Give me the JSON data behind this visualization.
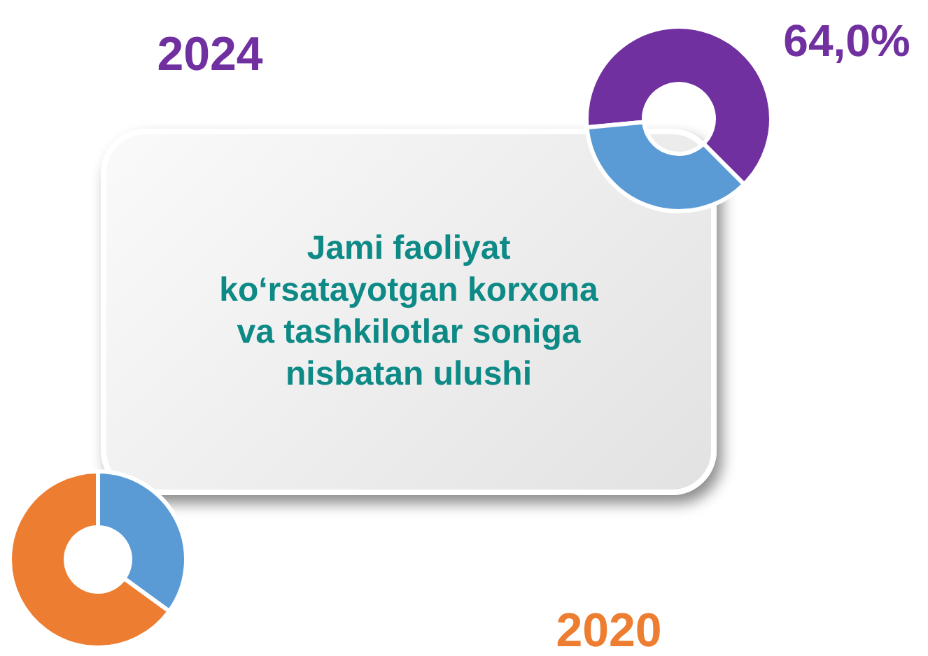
{
  "chart_data": [
    {
      "type": "donut",
      "title": "2024",
      "categories": [
        null,
        null
      ],
      "values": [
        64,
        36
      ],
      "colors": [
        "#7030a0",
        "#5b9bd5"
      ],
      "value_labels": [
        "64,0%",
        null
      ]
    },
    {
      "type": "other",
      "title": "Jami faoliyat ko‘rsatayotgan korxona va tashkilotlar soniga nisbatan ulushi"
    },
    {
      "type": "donut",
      "title": "2020",
      "categories": [
        null,
        null
      ],
      "values": [
        35,
        65
      ],
      "colors": [
        "#5b9bd5",
        "#ed7d31"
      ]
    }
  ]
}
